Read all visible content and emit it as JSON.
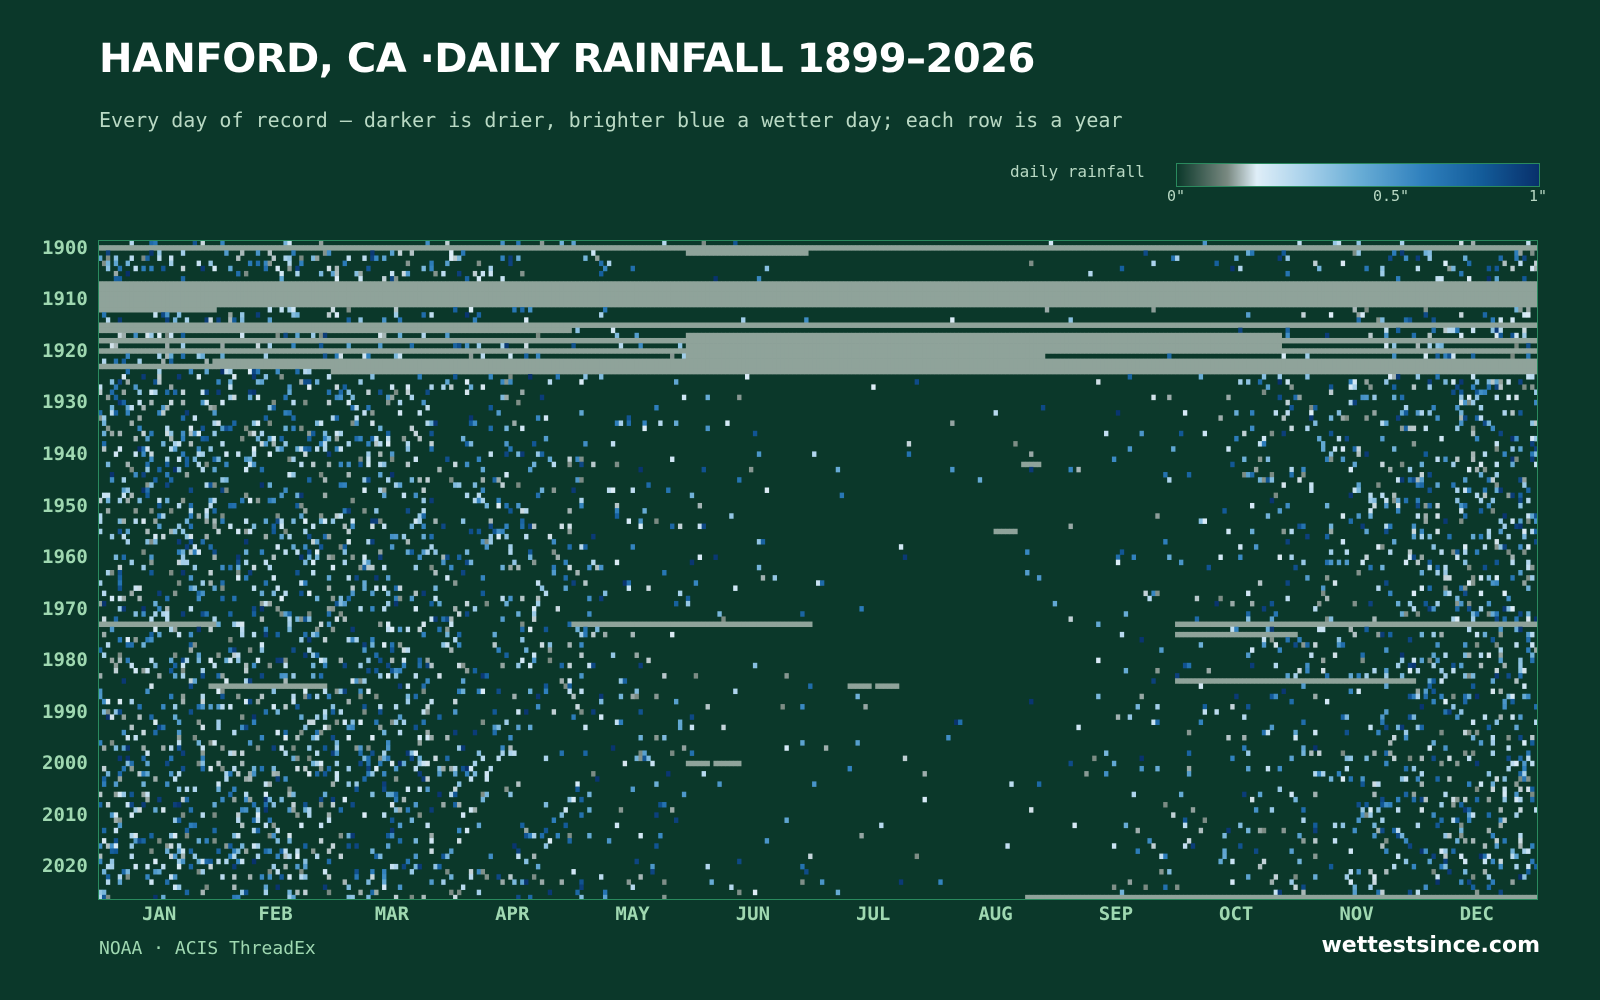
{
  "header": {
    "title": "HANFORD, CA ·DAILY RAINFALL 1899–2026",
    "subtitle": "Every day of record — darker is drier, brighter blue a wetter day; each row is a year"
  },
  "legend": {
    "label": "daily rainfall",
    "ticks": [
      "0\"",
      "0.5\"",
      "1\""
    ],
    "tick_values": [
      0,
      0.5,
      1
    ]
  },
  "footer": {
    "source": "NOAA · ACIS ThreadEx",
    "brand": "wettestsince.com"
  },
  "colors": {
    "background": "#0b382a",
    "missing": "#8fa39a",
    "dry": "#0b382a",
    "wet_max": "#08306b",
    "axis_text": "#9fd8b1"
  },
  "chart_data": {
    "type": "heatmap",
    "title": "HANFORD, CA ·DAILY RAINFALL 1899–2026",
    "x_axis": "day of year",
    "y_axis": "year",
    "year_range": [
      1899,
      2026
    ],
    "value_range_inches": [
      0,
      1
    ],
    "color_scale": "dark (0\") → pale blue → dark blue (1\")",
    "missing_color": "#8fa39a",
    "month_labels": [
      "JAN",
      "FEB",
      "MAR",
      "APR",
      "MAY",
      "JUN",
      "JUL",
      "AUG",
      "SEP",
      "OCT",
      "NOV",
      "DEC"
    ],
    "year_ticks": [
      "1900",
      "1910",
      "1920",
      "1930",
      "1940",
      "1950",
      "1960",
      "1970",
      "1980",
      "1990",
      "2000",
      "2010",
      "2020"
    ],
    "month_wet_fraction": [
      0.34,
      0.32,
      0.28,
      0.17,
      0.08,
      0.03,
      0.01,
      0.01,
      0.04,
      0.09,
      0.2,
      0.29
    ],
    "missing_periods": [
      {
        "year": 1900,
        "start_day": 1,
        "end_day": 365
      },
      {
        "year": 1901,
        "start_day": 150,
        "end_day": 180
      },
      {
        "year": 1907,
        "start_day": 1,
        "end_day": 365
      },
      {
        "year": 1908,
        "start_day": 1,
        "end_day": 365
      },
      {
        "year": 1909,
        "start_day": 1,
        "end_day": 365
      },
      {
        "year": 1910,
        "start_day": 1,
        "end_day": 365
      },
      {
        "year": 1911,
        "start_day": 1,
        "end_day": 365
      },
      {
        "year": 1912,
        "start_day": 1,
        "end_day": 30
      },
      {
        "year": 1915,
        "start_day": 1,
        "end_day": 365
      },
      {
        "year": 1916,
        "start_day": 1,
        "end_day": 120
      },
      {
        "year": 1917,
        "start_day": 150,
        "end_day": 300
      },
      {
        "year": 1918,
        "start_day": 1,
        "end_day": 365
      },
      {
        "year": 1919,
        "start_day": 150,
        "end_day": 300
      },
      {
        "year": 1920,
        "start_day": 1,
        "end_day": 365
      },
      {
        "year": 1921,
        "start_day": 150,
        "end_day": 240
      },
      {
        "year": 1922,
        "start_day": 30,
        "end_day": 365
      },
      {
        "year": 1923,
        "start_day": 1,
        "end_day": 365
      },
      {
        "year": 1924,
        "start_day": 60,
        "end_day": 365
      },
      {
        "year": 1942,
        "start_day": 235,
        "end_day": 239
      },
      {
        "year": 1955,
        "start_day": 228,
        "end_day": 233
      },
      {
        "year": 1973,
        "start_day": 1,
        "end_day": 30
      },
      {
        "year": 1973,
        "start_day": 121,
        "end_day": 181
      },
      {
        "year": 1973,
        "start_day": 274,
        "end_day": 365
      },
      {
        "year": 1975,
        "start_day": 274,
        "end_day": 304
      },
      {
        "year": 1984,
        "start_day": 274,
        "end_day": 334
      },
      {
        "year": 1985,
        "start_day": 29,
        "end_day": 58
      },
      {
        "year": 1985,
        "start_day": 191,
        "end_day": 196
      },
      {
        "year": 1985,
        "start_day": 198,
        "end_day": 203
      },
      {
        "year": 2000,
        "start_day": 150,
        "end_day": 155
      },
      {
        "year": 2000,
        "start_day": 157,
        "end_day": 163
      },
      {
        "year": 2026,
        "start_day": 236,
        "end_day": 365
      }
    ]
  }
}
